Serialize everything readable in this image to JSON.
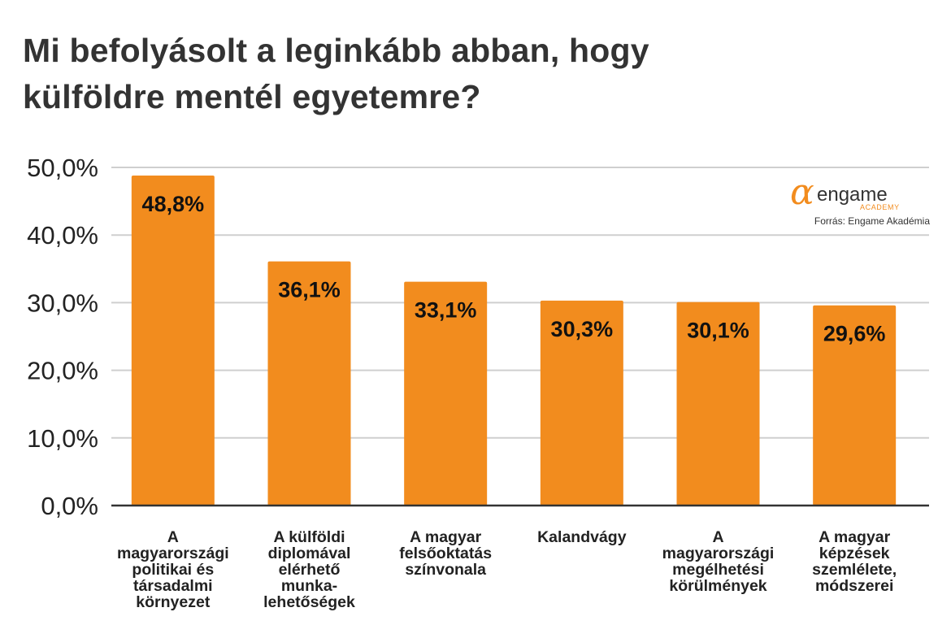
{
  "title_lines": [
    "Mi befolyásolt a leginkább abban, hogy",
    "külföldre mentél egyetemre?"
  ],
  "brand": {
    "mark": "ɑ",
    "name": "engame",
    "sub": "ACADEMY",
    "source": "Forrás: Engame Akadémia"
  },
  "colors": {
    "bar": "#f28c1e",
    "grid": "#cfcfcf",
    "axis": "#333333"
  },
  "chart_data": {
    "type": "bar",
    "title": "Mi befolyásolt a leginkább abban, hogy külföldre mentél egyetemre?",
    "categories": [
      [
        "A",
        "magyarországi",
        "politikai és",
        "társadalmi",
        "környezet"
      ],
      [
        "A külföldi",
        "diplomával",
        "elérhető",
        "munka-",
        "lehetőségek"
      ],
      [
        "A magyar",
        "felsőoktatás",
        "színvonala"
      ],
      [
        "Kalandvágy"
      ],
      [
        "A",
        "magyarországi",
        "megélhetési",
        "körülmények"
      ],
      [
        "A magyar",
        "képzések",
        "szemlélete,",
        "módszerei"
      ]
    ],
    "values": [
      48.8,
      36.1,
      33.1,
      30.3,
      30.1,
      29.6
    ],
    "value_labels": [
      "48,8%",
      "36,1%",
      "33,1%",
      "30,3%",
      "30,1%",
      "29,6%"
    ],
    "yticks": [
      0,
      10,
      20,
      30,
      40,
      50
    ],
    "ytick_labels": [
      "0,0%",
      "10,0%",
      "20,0%",
      "30,0%",
      "40,0%",
      "50,0%"
    ],
    "ylim": [
      0,
      50
    ],
    "grid": true,
    "legend": "none"
  }
}
